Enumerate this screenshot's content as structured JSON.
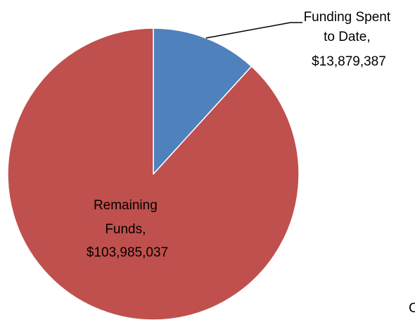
{
  "chart_data": {
    "type": "pie",
    "title": "",
    "slices": [
      {
        "key": "spent",
        "label_lines": [
          "Funding Spent",
          "to Date,",
          "$13,879,387"
        ],
        "value": 13879387,
        "color": "#4f81bd"
      },
      {
        "key": "remaining",
        "label_lines": [
          "Remaining",
          "Funds,",
          "$103,985,037"
        ],
        "value": 103985037,
        "color": "#c0504d"
      }
    ],
    "start_angle": "12 o'clock",
    "direction": "clockwise",
    "legend": "none",
    "data_label_leader_line": "spent"
  },
  "footer_fragment": "C"
}
